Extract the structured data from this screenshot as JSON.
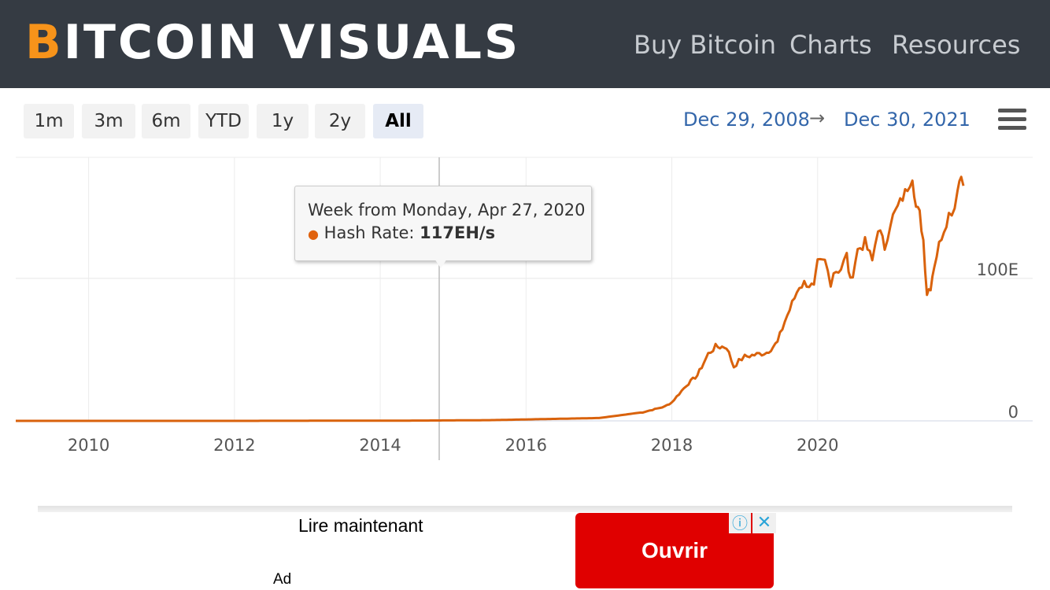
{
  "header": {
    "logo_first": "B",
    "logo_rest": "ITCOIN VISUALS",
    "nav": [
      "Buy Bitcoin",
      "Charts",
      "Resources"
    ]
  },
  "range_selector": {
    "buttons": [
      "1m",
      "3m",
      "6m",
      "YTD",
      "1y",
      "2y",
      "All"
    ],
    "active": "All",
    "from_date": "Dec 29, 2008",
    "arrow": "→",
    "to_date": "Dec 30, 2021"
  },
  "tooltip": {
    "title": "Week from Monday, Apr 27, 2020",
    "bullet": "●",
    "series_label": "Hash Rate: ",
    "value": "117EH/s"
  },
  "chart_data": {
    "type": "line",
    "xlabel": "",
    "ylabel": "",
    "x_ticks": [
      "2010",
      "2012",
      "2014",
      "2016",
      "2018",
      "2020"
    ],
    "y_ticks": [
      "0",
      "100E"
    ],
    "y_unit": "EH/s",
    "grid": true,
    "color": "#d9620c",
    "series": [
      {
        "x": [
          2009.0,
          2012.0,
          2014.5,
          2015.5,
          2016.0,
          2016.5,
          2017.0,
          2017.3,
          2017.6,
          2017.9,
          2018.0,
          2018.2,
          2018.35,
          2018.5,
          2018.6,
          2018.75,
          2018.85,
          2018.92,
          2019.0,
          2019.1,
          2019.3,
          2019.45,
          2019.55,
          2019.65,
          2019.75,
          2019.85,
          2019.95,
          2020.0,
          2020.1,
          2020.18,
          2020.22,
          2020.32,
          2020.4,
          2020.45,
          2020.55,
          2020.65,
          2020.75,
          2020.83,
          2020.92,
          2021.0,
          2021.1,
          2021.2,
          2021.3,
          2021.35,
          2021.4,
          2021.45,
          2021.5,
          2021.55,
          2021.6,
          2021.7,
          2021.8,
          2021.88,
          2021.92,
          2021.97,
          2022.0
        ],
        "y": [
          0,
          0,
          0.2,
          0.5,
          1,
          1.5,
          2,
          4,
          6,
          10,
          13,
          25,
          32,
          47,
          52,
          52,
          38,
          42,
          45,
          46,
          48,
          55,
          70,
          82,
          95,
          97,
          93,
          110,
          112,
          98,
          105,
          107,
          116,
          97,
          120,
          125,
          112,
          136,
          122,
          140,
          150,
          160,
          172,
          150,
          145,
          127,
          90,
          95,
          110,
          130,
          145,
          150,
          165,
          172,
          165
        ]
      }
    ],
    "ylim": [
      0,
      185
    ],
    "xlim": [
      2009.0,
      2022.0
    ]
  },
  "ad": {
    "title": "Lire maintenant",
    "label": "Ad",
    "button": "Ouvrir",
    "info_icon": "ⓘ",
    "close_icon": "✕"
  }
}
